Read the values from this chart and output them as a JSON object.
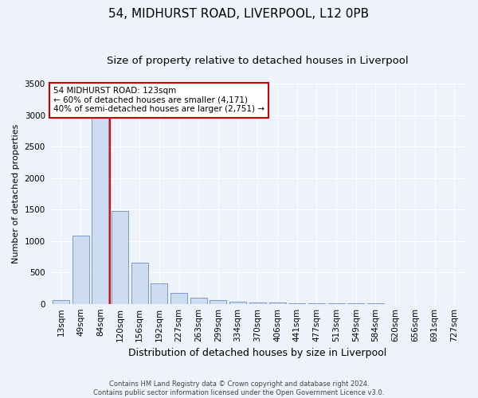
{
  "title1": "54, MIDHURST ROAD, LIVERPOOL, L12 0PB",
  "title2": "Size of property relative to detached houses in Liverpool",
  "xlabel": "Distribution of detached houses by size in Liverpool",
  "ylabel": "Number of detached properties",
  "footnote": "Contains HM Land Registry data © Crown copyright and database right 2024.\nContains public sector information licensed under the Open Government Licence v3.0.",
  "bin_labels": [
    "13sqm",
    "49sqm",
    "84sqm",
    "120sqm",
    "156sqm",
    "192sqm",
    "227sqm",
    "263sqm",
    "299sqm",
    "334sqm",
    "370sqm",
    "406sqm",
    "441sqm",
    "477sqm",
    "513sqm",
    "549sqm",
    "584sqm",
    "620sqm",
    "656sqm",
    "691sqm",
    "727sqm"
  ],
  "bar_values": [
    55,
    1080,
    3060,
    1480,
    650,
    330,
    175,
    95,
    55,
    40,
    25,
    15,
    8,
    7,
    5,
    4,
    3,
    2,
    2,
    1,
    1
  ],
  "bar_color": "#cddcf0",
  "bar_edge_color": "#6a8fc0",
  "red_line_index": 2.5,
  "property_label": "54 MIDHURST ROAD: 123sqm",
  "stat1": "← 60% of detached houses are smaller (4,171)",
  "stat2": "40% of semi-detached houses are larger (2,751) →",
  "annotation_box_color": "#ffffff",
  "annotation_box_edge": "#cc0000",
  "ylim": [
    0,
    3500
  ],
  "yticks": [
    0,
    500,
    1000,
    1500,
    2000,
    2500,
    3000,
    3500
  ],
  "bg_color": "#eef2fb",
  "grid_color": "#ffffff",
  "title1_fontsize": 11,
  "title2_fontsize": 9.5,
  "xlabel_fontsize": 9,
  "ylabel_fontsize": 8,
  "tick_fontsize": 7.5,
  "footnote_fontsize": 6
}
